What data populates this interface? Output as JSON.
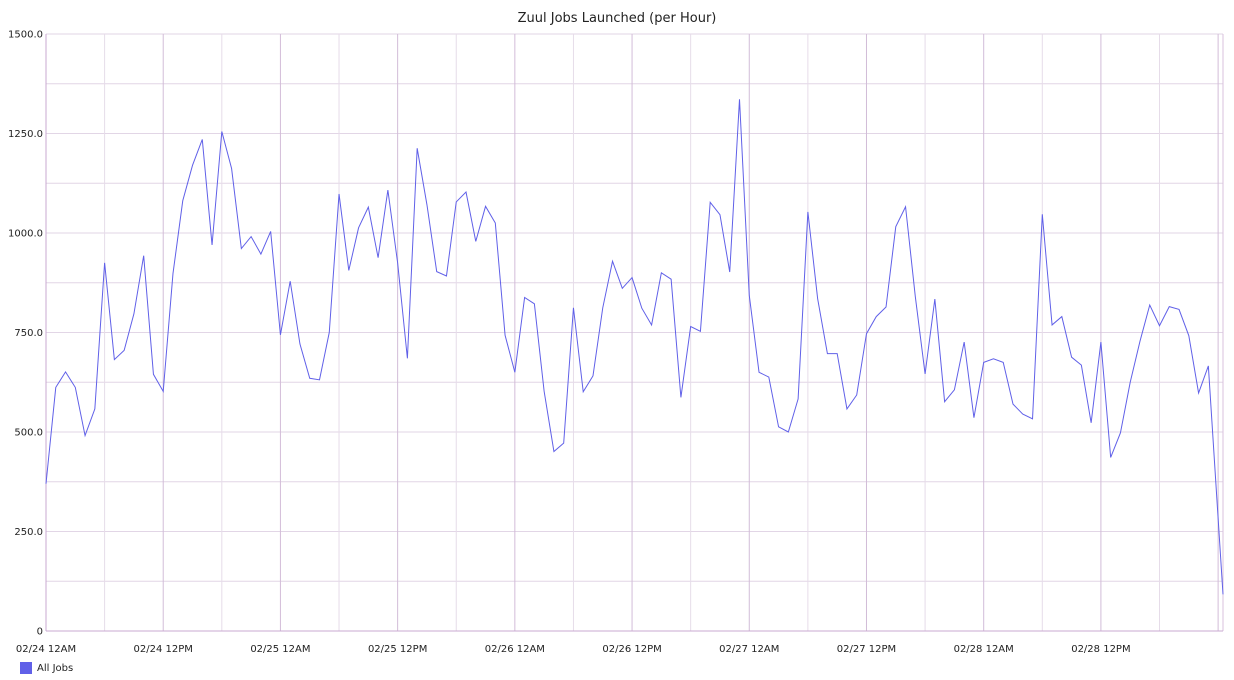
{
  "chart_data": {
    "type": "line",
    "title": "Zuul Jobs Launched (per Hour)",
    "xlabel": "",
    "ylabel": "",
    "ylim": [
      0,
      1500
    ],
    "y_ticks": [
      "0",
      "250.0",
      "500.0",
      "750.0",
      "1000.0",
      "1250.0",
      "1500.0"
    ],
    "x_ticks": [
      "02/24 12AM",
      "02/24 12PM",
      "02/25 12AM",
      "02/25 12PM",
      "02/26 12AM",
      "02/26 12PM",
      "02/27 12AM",
      "02/27 12PM",
      "02/28 12AM",
      "02/28 12PM"
    ],
    "x_tick_positions_hours": [
      0,
      12,
      24,
      36,
      48,
      60,
      72,
      84,
      96,
      108
    ],
    "xlim_hours": [
      0,
      120.5
    ],
    "grid": true,
    "legend_position": "bottom-left",
    "series": [
      {
        "name": "All Jobs",
        "color": "#6060e8",
        "x": [
          0,
          1,
          2,
          3,
          4,
          5,
          6,
          7,
          8,
          9,
          10,
          11,
          12,
          13,
          14,
          15,
          16,
          17,
          18,
          19,
          20,
          21,
          22,
          23,
          24,
          25,
          26,
          27,
          28,
          29,
          30,
          31,
          32,
          33,
          34,
          35,
          36,
          37,
          38,
          39,
          40,
          41,
          42,
          43,
          44,
          45,
          46,
          47,
          48,
          49,
          50,
          51,
          52,
          53,
          54,
          55,
          56,
          57,
          58,
          59,
          60,
          61,
          62,
          63,
          64,
          65,
          66,
          67,
          68,
          69,
          70,
          71,
          72,
          73,
          74,
          75,
          76,
          77,
          78,
          79,
          80,
          81,
          82,
          83,
          84,
          85,
          86,
          87,
          88,
          89,
          90,
          91,
          92,
          93,
          94,
          95,
          96,
          97,
          98,
          99,
          100,
          101,
          102,
          103,
          104,
          105,
          106,
          107,
          108,
          109,
          110,
          111,
          112,
          113,
          114,
          115,
          116,
          117,
          118,
          119,
          120.5
        ],
        "values": [
          370,
          612,
          651,
          612,
          491,
          558,
          925,
          682,
          705,
          797,
          943,
          645,
          602,
          898,
          1081,
          1170,
          1235,
          970,
          1255,
          1162,
          961,
          991,
          947,
          1004,
          744,
          879,
          721,
          635,
          631,
          750,
          1098,
          906,
          1013,
          1065,
          938,
          1108,
          925,
          685,
          1213,
          1071,
          903,
          892,
          1078,
          1103,
          979,
          1067,
          1025,
          743,
          650,
          838,
          822,
          602,
          451,
          472,
          812,
          601,
          641,
          812,
          929,
          861,
          888,
          811,
          769,
          900,
          884,
          587,
          765,
          753,
          1077,
          1046,
          902,
          1336,
          843,
          650,
          638,
          513,
          500,
          583,
          1053,
          835,
          697,
          697,
          558,
          593,
          747,
          790,
          814,
          1016,
          1066,
          840,
          646,
          834,
          576,
          606,
          726,
          536,
          675,
          684,
          675,
          570,
          545,
          533,
          1047,
          769,
          790,
          688,
          668,
          523,
          726,
          436,
          498,
          625,
          728,
          819,
          767,
          815,
          808,
          742,
          598,
          666,
          92
        ]
      }
    ]
  }
}
